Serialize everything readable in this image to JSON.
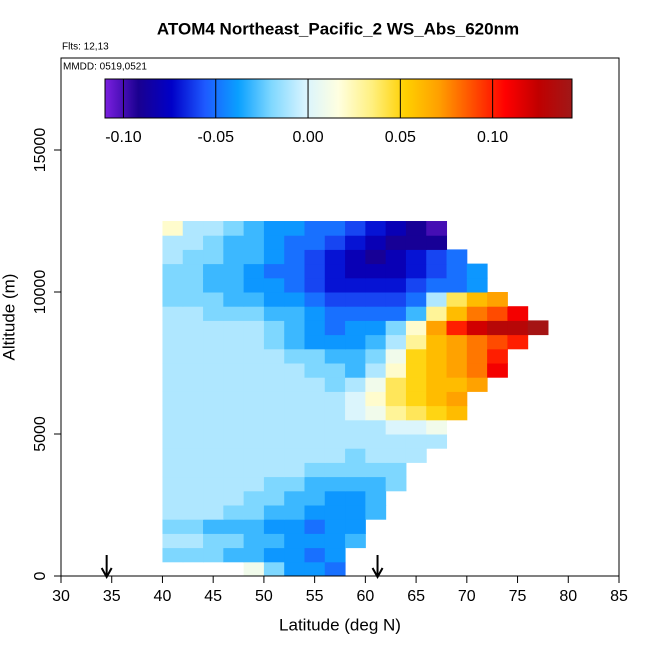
{
  "chart_data": {
    "type": "heatmap",
    "title": "ATOM4 Northeast_Pacific_2 WS_Abs_620nm",
    "subtitle": "Flts: 12,13",
    "annotation": "MMDD: 0519,0521",
    "x_label": "Latitude (deg N)",
    "y_label": "Altitude (m)",
    "xlim": [
      30,
      85
    ],
    "xticks": [
      30,
      35,
      40,
      45,
      50,
      55,
      60,
      65,
      70,
      75,
      80,
      85
    ],
    "ylim": [
      0,
      18240
    ],
    "yticks": [
      0,
      5000,
      10000,
      15000
    ],
    "x_bins": [
      40,
      42,
      44,
      46,
      48,
      50,
      52,
      54,
      56,
      58,
      60,
      62,
      64,
      66,
      68,
      70,
      72,
      74,
      76,
      78
    ],
    "y_bins": [
      0,
      500,
      1000,
      1500,
      2000,
      2500,
      3000,
      3500,
      4000,
      4500,
      5000,
      5500,
      6000,
      6500,
      7000,
      7500,
      8000,
      8500,
      9000,
      9500,
      10000,
      10500,
      11000,
      11500,
      12000,
      12500
    ],
    "values": [
      [
        null,
        null,
        null,
        null,
        0.01,
        -0.02,
        -0.04,
        -0.04,
        -0.05,
        null,
        null,
        null,
        null,
        null,
        null,
        null,
        null,
        null,
        null
      ],
      [
        -0.02,
        -0.02,
        -0.02,
        -0.03,
        -0.03,
        -0.04,
        -0.04,
        -0.05,
        -0.04,
        null,
        null,
        null,
        null,
        null,
        null,
        null,
        null,
        null,
        null
      ],
      [
        -0.01,
        -0.01,
        -0.02,
        -0.02,
        -0.03,
        -0.03,
        -0.04,
        -0.04,
        -0.04,
        -0.03,
        null,
        null,
        null,
        null,
        null,
        null,
        null,
        null,
        null
      ],
      [
        -0.02,
        -0.02,
        -0.03,
        -0.03,
        -0.03,
        -0.04,
        -0.04,
        -0.05,
        -0.04,
        -0.04,
        null,
        null,
        null,
        null,
        null,
        null,
        null,
        null,
        null
      ],
      [
        -0.01,
        -0.01,
        -0.01,
        -0.02,
        -0.02,
        -0.03,
        -0.03,
        -0.04,
        -0.04,
        -0.04,
        -0.03,
        null,
        null,
        null,
        null,
        null,
        null,
        null,
        null
      ],
      [
        -0.01,
        -0.01,
        -0.01,
        -0.01,
        -0.02,
        -0.02,
        -0.03,
        -0.03,
        -0.04,
        -0.04,
        -0.03,
        null,
        null,
        null,
        null,
        null,
        null,
        null,
        null
      ],
      [
        -0.01,
        -0.01,
        -0.01,
        -0.01,
        -0.01,
        -0.02,
        -0.02,
        -0.03,
        -0.03,
        -0.03,
        -0.03,
        -0.02,
        null,
        null,
        null,
        null,
        null,
        null,
        null
      ],
      [
        -0.01,
        -0.01,
        -0.01,
        -0.01,
        -0.01,
        -0.01,
        -0.01,
        -0.02,
        -0.02,
        -0.02,
        -0.02,
        -0.02,
        null,
        null,
        null,
        null,
        null,
        null,
        null
      ],
      [
        -0.01,
        -0.01,
        -0.01,
        -0.01,
        -0.01,
        -0.01,
        -0.01,
        -0.01,
        -0.01,
        -0.02,
        -0.01,
        -0.01,
        -0.01,
        null,
        null,
        null,
        null,
        null,
        null
      ],
      [
        -0.01,
        -0.01,
        -0.01,
        -0.01,
        -0.01,
        -0.01,
        -0.01,
        -0.01,
        -0.01,
        -0.01,
        -0.01,
        -0.01,
        -0.01,
        -0.01,
        null,
        null,
        null,
        null,
        null
      ],
      [
        -0.01,
        -0.01,
        -0.01,
        -0.01,
        -0.01,
        -0.01,
        -0.01,
        -0.01,
        -0.01,
        -0.01,
        -0.01,
        0.0,
        0.0,
        0.01,
        null,
        null,
        null,
        null,
        null
      ],
      [
        -0.01,
        -0.01,
        -0.01,
        -0.01,
        -0.01,
        -0.01,
        -0.01,
        -0.01,
        -0.01,
        0.0,
        0.01,
        0.03,
        0.04,
        0.05,
        0.06,
        null,
        null,
        null,
        null
      ],
      [
        -0.01,
        -0.01,
        -0.01,
        -0.01,
        -0.01,
        -0.01,
        -0.01,
        -0.01,
        -0.01,
        0.0,
        0.02,
        0.04,
        0.05,
        0.06,
        0.07,
        null,
        null,
        null,
        null
      ],
      [
        -0.01,
        -0.01,
        -0.01,
        -0.01,
        -0.01,
        -0.01,
        -0.01,
        -0.01,
        -0.02,
        -0.01,
        0.01,
        0.04,
        0.05,
        0.06,
        0.06,
        0.07,
        null,
        null,
        null
      ],
      [
        -0.01,
        -0.01,
        -0.01,
        -0.01,
        -0.01,
        -0.01,
        -0.01,
        -0.02,
        -0.02,
        -0.03,
        -0.01,
        0.02,
        0.05,
        0.06,
        0.07,
        0.08,
        0.11,
        null,
        null
      ],
      [
        -0.01,
        -0.01,
        -0.01,
        -0.01,
        -0.01,
        -0.01,
        -0.02,
        -0.02,
        -0.03,
        -0.03,
        -0.02,
        0.01,
        0.05,
        0.06,
        0.07,
        0.08,
        0.1,
        null,
        null
      ],
      [
        -0.01,
        -0.01,
        -0.01,
        -0.01,
        -0.01,
        -0.02,
        -0.03,
        -0.04,
        -0.04,
        -0.04,
        -0.03,
        -0.01,
        0.03,
        0.06,
        0.07,
        0.08,
        0.09,
        0.1,
        null
      ],
      [
        -0.01,
        -0.01,
        -0.01,
        -0.01,
        -0.01,
        -0.02,
        -0.03,
        -0.04,
        -0.05,
        -0.04,
        -0.04,
        -0.02,
        0.02,
        0.07,
        0.1,
        0.12,
        0.13,
        0.13,
        0.14
      ],
      [
        -0.01,
        -0.01,
        -0.02,
        -0.02,
        -0.02,
        -0.03,
        -0.03,
        -0.04,
        -0.05,
        -0.05,
        -0.05,
        -0.05,
        -0.03,
        0.03,
        0.06,
        0.08,
        0.09,
        0.11,
        null
      ],
      [
        -0.02,
        -0.02,
        -0.02,
        -0.03,
        -0.03,
        -0.04,
        -0.04,
        -0.05,
        -0.06,
        -0.06,
        -0.06,
        -0.06,
        -0.05,
        -0.01,
        0.04,
        0.06,
        0.07,
        null,
        null
      ],
      [
        -0.02,
        -0.02,
        -0.03,
        -0.03,
        -0.04,
        -0.04,
        -0.05,
        -0.06,
        -0.07,
        -0.07,
        -0.07,
        -0.07,
        -0.06,
        -0.05,
        -0.05,
        -0.04,
        null,
        null,
        null
      ],
      [
        -0.02,
        -0.02,
        -0.03,
        -0.03,
        -0.04,
        -0.05,
        -0.05,
        -0.06,
        -0.07,
        -0.08,
        -0.08,
        -0.08,
        -0.07,
        -0.06,
        -0.05,
        -0.04,
        null,
        null,
        null
      ],
      [
        -0.01,
        -0.02,
        -0.02,
        -0.03,
        -0.03,
        -0.04,
        -0.05,
        -0.06,
        -0.07,
        -0.08,
        -0.09,
        -0.08,
        -0.07,
        -0.06,
        -0.05,
        null,
        null,
        null,
        null
      ],
      [
        -0.01,
        -0.01,
        -0.02,
        -0.03,
        -0.03,
        -0.04,
        -0.05,
        -0.05,
        -0.06,
        -0.07,
        -0.08,
        -0.09,
        -0.09,
        -0.09,
        null,
        null,
        null,
        null,
        null
      ],
      [
        0.02,
        -0.01,
        -0.01,
        -0.02,
        -0.03,
        -0.04,
        -0.04,
        -0.05,
        -0.05,
        -0.06,
        -0.07,
        -0.08,
        -0.09,
        -0.1,
        null,
        null,
        null,
        null,
        null
      ]
    ],
    "arrows_x": [
      34.5,
      61.2
    ],
    "colorbar": {
      "lim": [
        -0.11,
        0.143
      ],
      "ticks": [
        {
          "value": -0.1,
          "label": "-0.10"
        },
        {
          "value": -0.05,
          "label": "-0.05"
        },
        {
          "value": 0,
          "label": "0.00"
        },
        {
          "value": 0.05,
          "label": "0.05"
        },
        {
          "value": 0.1,
          "label": "0.10"
        }
      ],
      "colors": [
        "#7b1fe0",
        "#1a0090",
        "#0000c8",
        "#1e5aff",
        "#0aa0ff",
        "#80d8ff",
        "#d8f4ff",
        "#ffffe0",
        "#fff080",
        "#ffd000",
        "#ffa000",
        "#ff5000",
        "#ff0000",
        "#c00000",
        "#a01818"
      ]
    }
  }
}
